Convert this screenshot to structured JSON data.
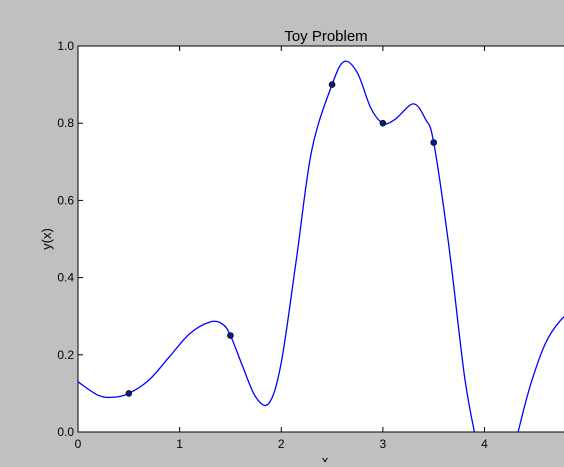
{
  "chart_data": {
    "type": "line",
    "title": "Toy Problem",
    "xlabel": "x",
    "ylabel": "y(x)",
    "xlim": [
      0,
      4.9
    ],
    "ylim": [
      0,
      1.0
    ],
    "x_ticks": [
      "0",
      "1",
      "2",
      "3",
      "4"
    ],
    "y_ticks": [
      "0.0",
      "0.2",
      "0.4",
      "0.6",
      "0.8",
      "1.0"
    ],
    "grid": false,
    "series": [
      {
        "kind": "line",
        "color": "#0000ff",
        "x": [
          0,
          0.2,
          0.35,
          0.5,
          0.7,
          0.9,
          1.1,
          1.3,
          1.42,
          1.5,
          1.62,
          1.75,
          1.88,
          2.0,
          2.15,
          2.3,
          2.5,
          2.62,
          2.75,
          2.88,
          3.0,
          3.12,
          3.3,
          3.42,
          3.5,
          3.65,
          3.8,
          3.9
        ],
        "y": [
          0.13,
          0.095,
          0.09,
          0.1,
          0.135,
          0.195,
          0.255,
          0.285,
          0.28,
          0.25,
          0.17,
          0.09,
          0.075,
          0.18,
          0.45,
          0.73,
          0.9,
          0.96,
          0.93,
          0.84,
          0.8,
          0.81,
          0.85,
          0.81,
          0.75,
          0.48,
          0.15,
          0.0
        ]
      },
      {
        "kind": "line",
        "color": "#0000ff",
        "x": [
          4.33,
          4.45,
          4.6,
          4.75,
          4.9
        ],
        "y": [
          0.0,
          0.12,
          0.23,
          0.29,
          0.32
        ]
      },
      {
        "kind": "scatter",
        "color": "#0a1f7a",
        "x": [
          0.5,
          1.5,
          2.5,
          3.0,
          3.5
        ],
        "y": [
          0.1,
          0.25,
          0.9,
          0.8,
          0.75
        ]
      }
    ]
  }
}
